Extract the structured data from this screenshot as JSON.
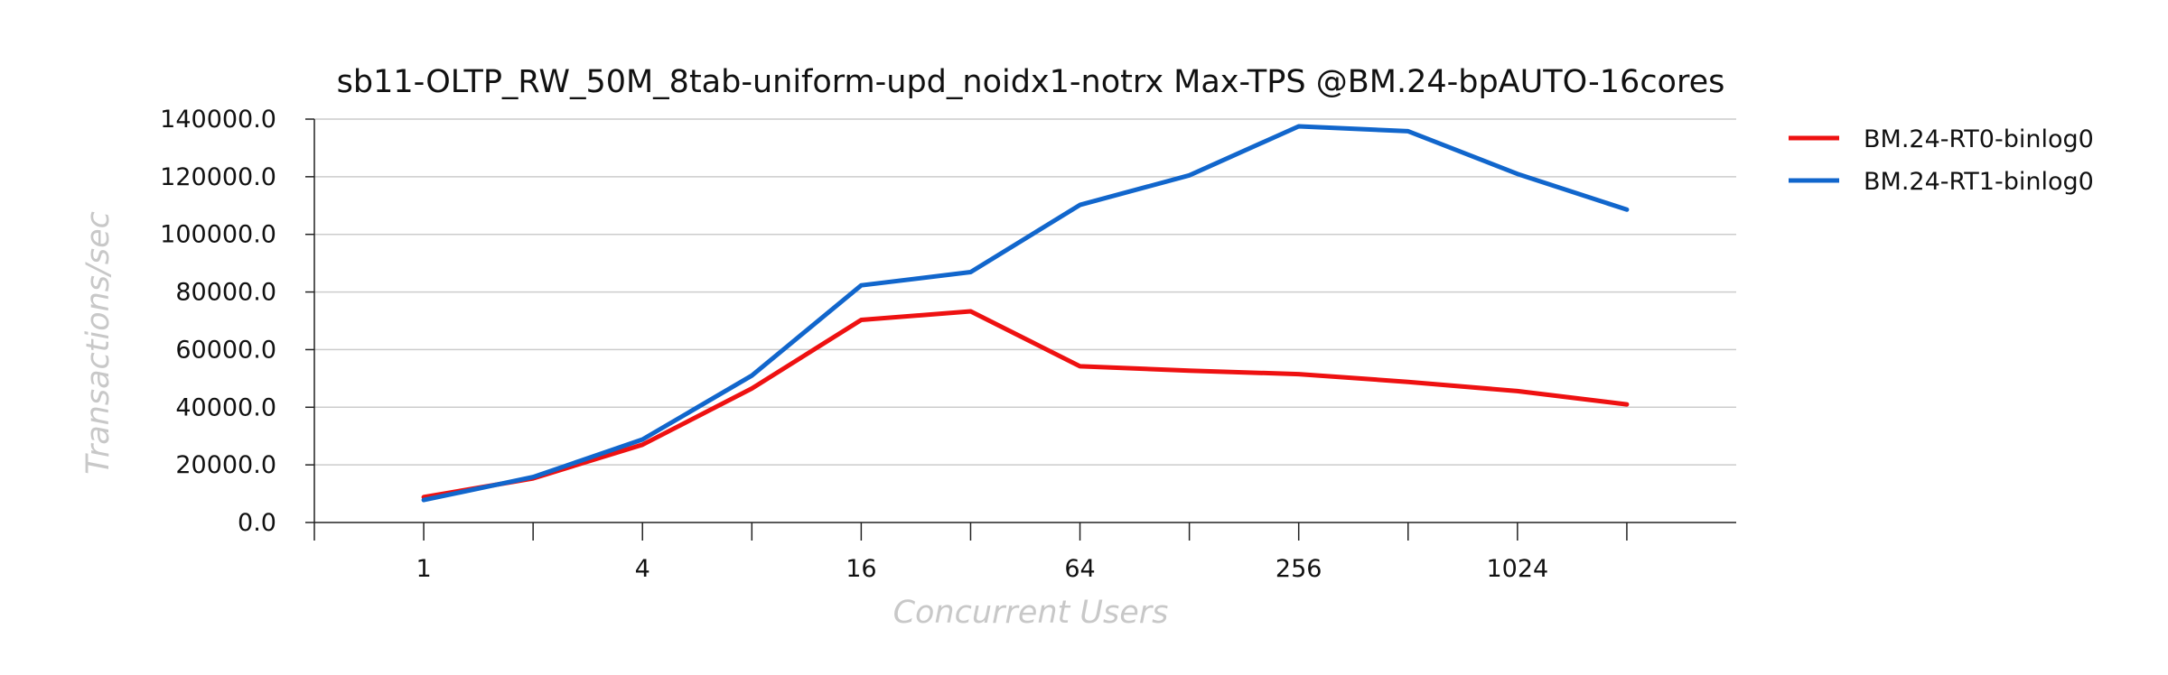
{
  "chart_data": {
    "type": "line",
    "title": "sb11-OLTP_RW_50M_8tab-uniform-upd_noidx1-notrx Max-TPS @BM.24-bpAUTO-16cores",
    "xlabel": "Concurrent Users",
    "ylabel": "Transactions/sec",
    "x_scale": "log2",
    "x": [
      1,
      2,
      4,
      8,
      16,
      32,
      64,
      128,
      256,
      512,
      1024,
      2048
    ],
    "x_tick_labels": [
      "1",
      "4",
      "16",
      "64",
      "256",
      "1024"
    ],
    "x_tick_values": [
      1,
      4,
      16,
      64,
      256,
      1024
    ],
    "x_minor_ticks": [
      0.5,
      2,
      8,
      32,
      128,
      512,
      2048
    ],
    "xlim": [
      0.5,
      4096
    ],
    "ylim": [
      0,
      140000
    ],
    "y_ticks": [
      0,
      20000,
      40000,
      60000,
      80000,
      100000,
      120000,
      140000
    ],
    "y_tick_labels": [
      "0.0",
      "20000.0",
      "40000.0",
      "60000.0",
      "80000.0",
      "100000.0",
      "120000.0",
      "140000.0"
    ],
    "grid": "horizontal",
    "legend_position": "right, outside plot",
    "series": [
      {
        "name": "BM.24-RT0-binlog0",
        "color": "#ee1111",
        "values": [
          8800,
          15300,
          27000,
          46500,
          70300,
          73300,
          54200,
          52700,
          51500,
          48800,
          45600,
          41000
        ]
      },
      {
        "name": "BM.24-RT1-binlog0",
        "color": "#1166cc",
        "values": [
          7800,
          15800,
          28800,
          51000,
          82300,
          86900,
          110200,
          120500,
          137500,
          135800,
          121000,
          108600
        ]
      }
    ]
  }
}
